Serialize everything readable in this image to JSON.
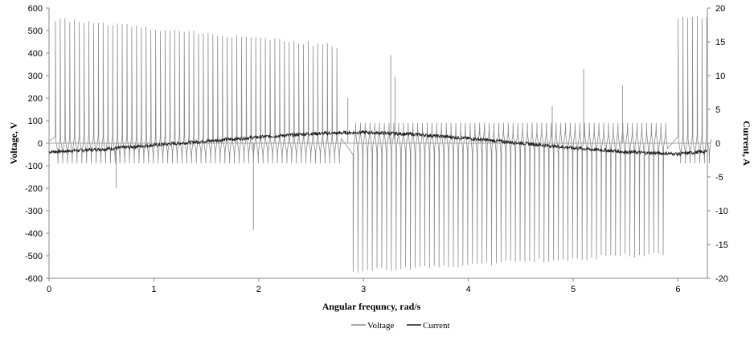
{
  "chart_data": {
    "type": "line",
    "xlabel": "Angular frequncy, rad/s",
    "ylabel": "Voltage, V",
    "y2label": "Current, A",
    "xlim": [
      0,
      6.28
    ],
    "ylim": [
      -600,
      600
    ],
    "y2lim": [
      -20,
      20
    ],
    "xticks": [
      "0",
      "1",
      "2",
      "3",
      "4",
      "5",
      "6"
    ],
    "yticks": [
      "600",
      "500",
      "400",
      "300",
      "200",
      "100",
      "0",
      "-100",
      "-200",
      "-300",
      "-400",
      "-500",
      "-600"
    ],
    "y2ticks": [
      "20",
      "15",
      "10",
      "5",
      "0",
      "-5",
      "-10",
      "-15",
      "-20"
    ],
    "grid": false,
    "legend_position": "bottom",
    "series": [
      {
        "name": "Voltage",
        "axis": "left",
        "color": "#8c8c8c",
        "description_points": {
          "pulse_phases": [
            0.06,
            2.8,
            3.0,
            5.9,
            6.0,
            6.28
          ],
          "positive_pulse_peak_start": 550,
          "positive_pulse_peak_end": 430,
          "negative_pulse_peak_start": -570,
          "negative_pulse_peak_end": -490,
          "baseline_positive": 35,
          "baseline_negative": -45,
          "pulse_period": 0.0455
        }
      },
      {
        "name": "Current",
        "axis": "right",
        "color": "#1a1a1a",
        "x": [
          0,
          0.5,
          1.0,
          1.5,
          2.0,
          2.5,
          3.0,
          3.5,
          4.0,
          4.5,
          5.0,
          5.5,
          6.0,
          6.28
        ],
        "y": [
          -1.3,
          -0.9,
          -0.3,
          0.3,
          0.9,
          1.4,
          1.6,
          1.3,
          0.7,
          0.0,
          -0.7,
          -1.3,
          -1.6,
          -1.2
        ]
      }
    ]
  }
}
